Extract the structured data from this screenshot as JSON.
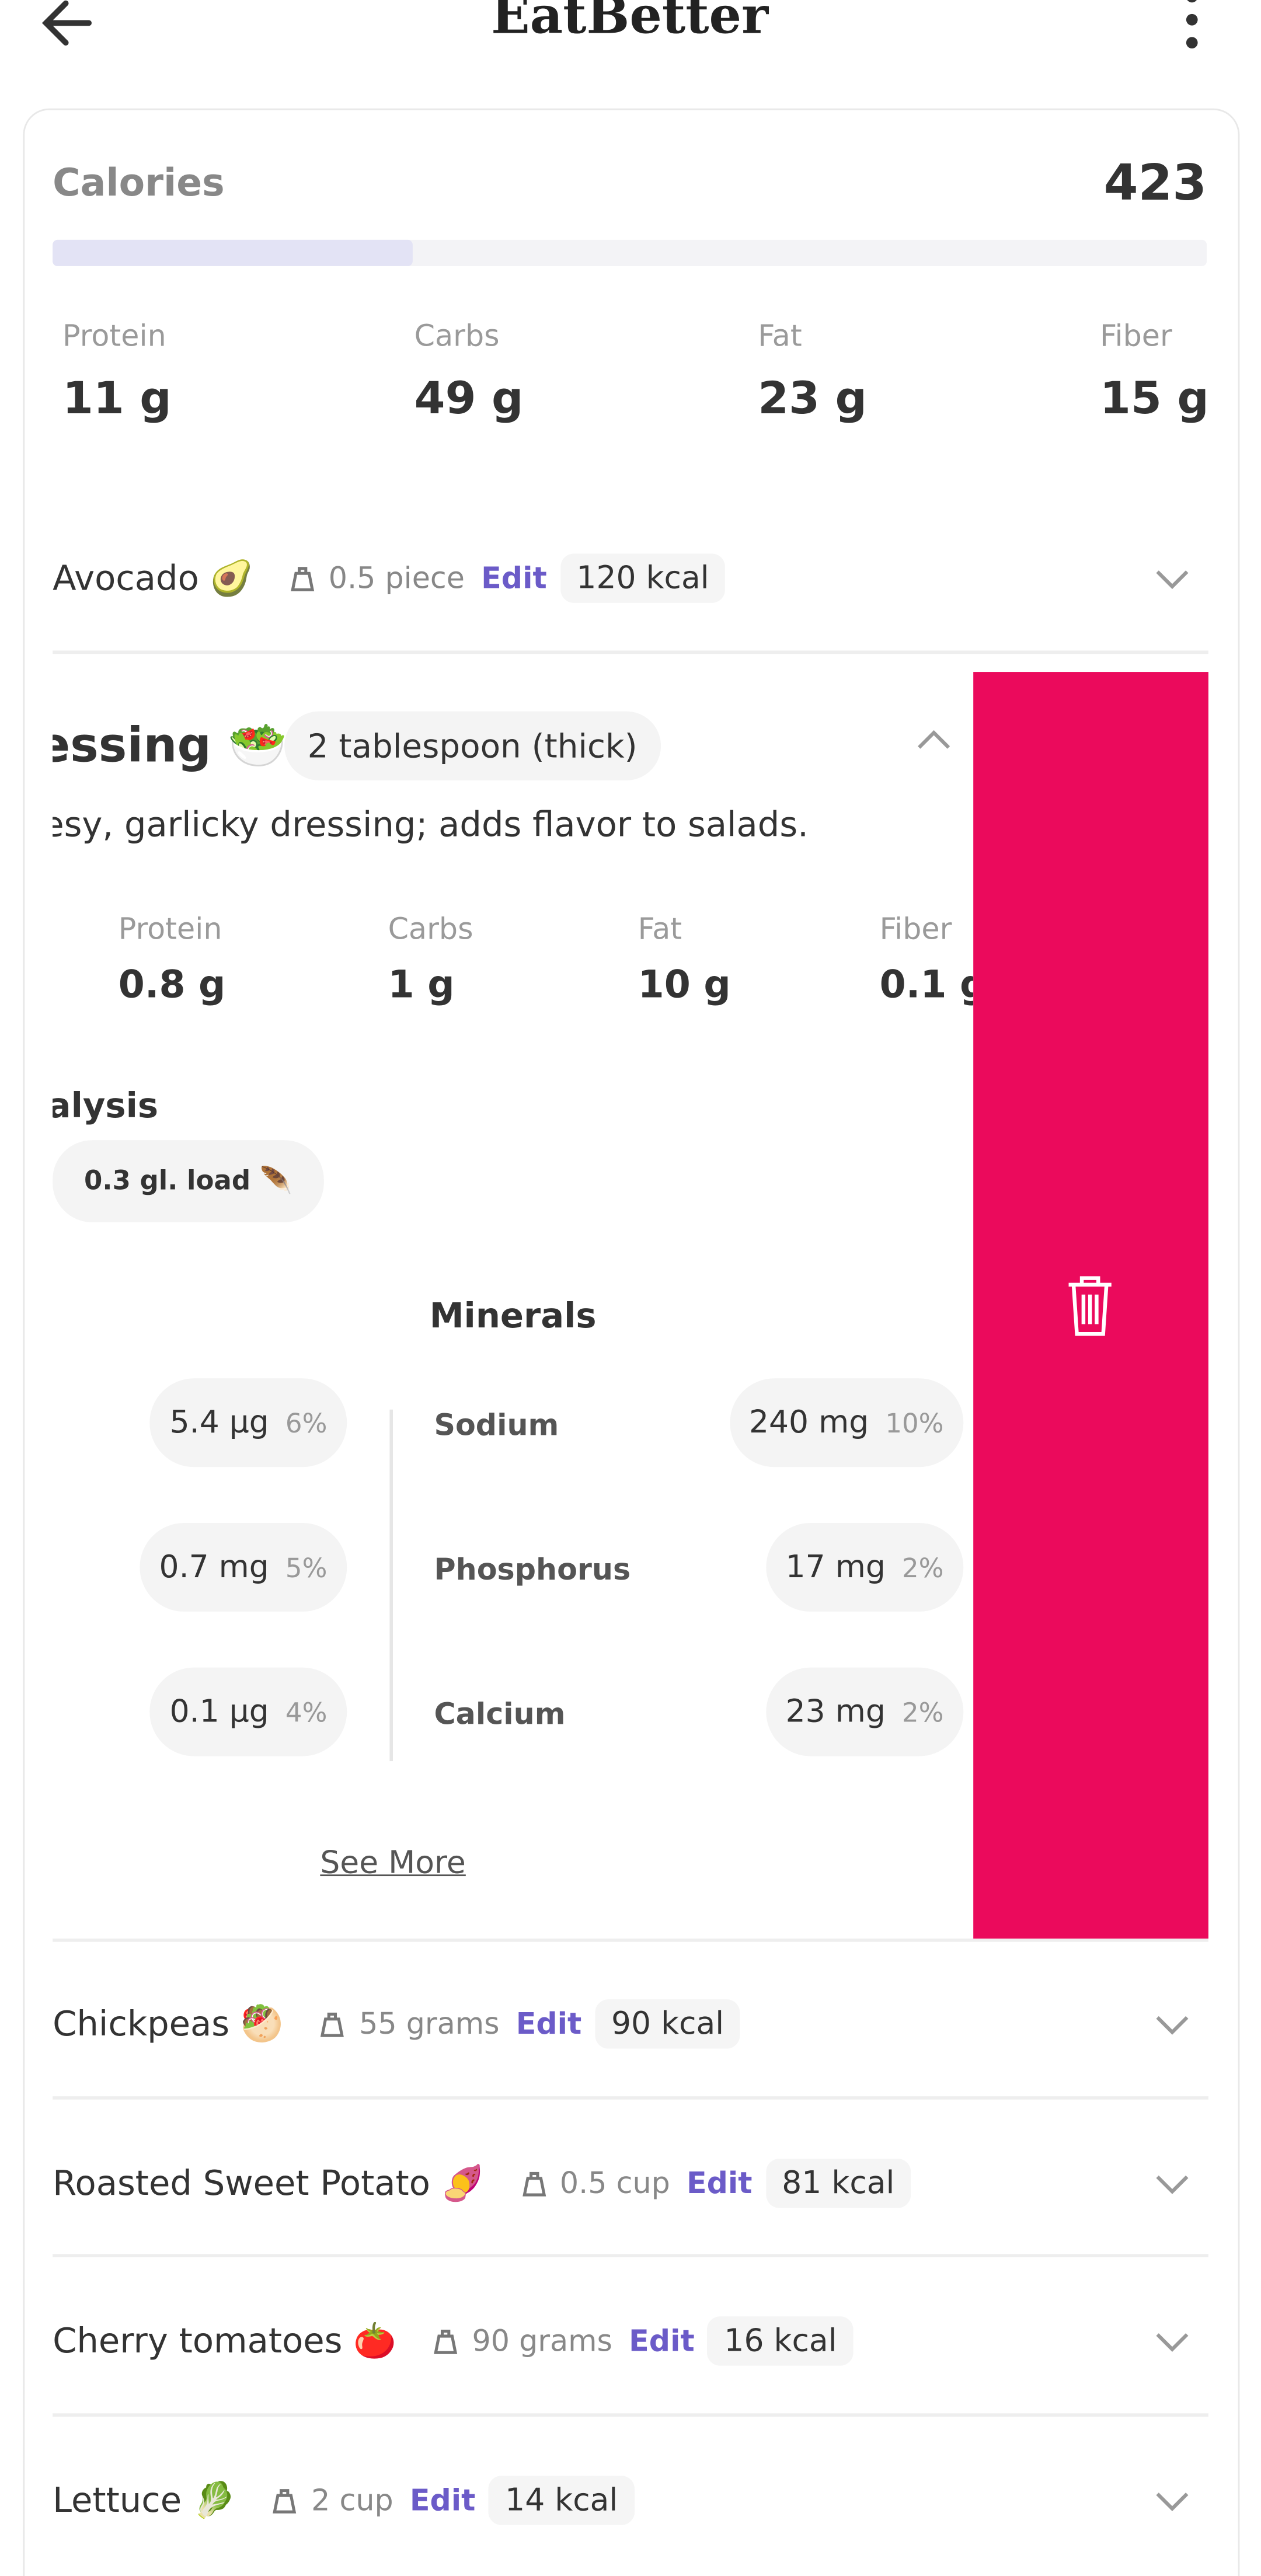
{
  "header": {
    "title": "EatBetter"
  },
  "summary": {
    "calories_label": "Calories",
    "calories": "423",
    "macros": [
      {
        "label": "Protein",
        "value": "11 g"
      },
      {
        "label": "Carbs",
        "value": "49 g"
      },
      {
        "label": "Fat",
        "value": "23 g"
      },
      {
        "label": "Fiber",
        "value": "15 g"
      }
    ]
  },
  "items": [
    {
      "name": "Avocado 🥑",
      "amount": "0.5 piece",
      "edit": "Edit",
      "kcal": "120 kcal"
    },
    {
      "name": "Chickpeas 🥙",
      "amount": "55 grams",
      "edit": "Edit",
      "kcal": "90 kcal"
    },
    {
      "name": "Roasted Sweet Potato 🍠",
      "amount": "0.5 cup",
      "edit": "Edit",
      "kcal": "81 kcal"
    },
    {
      "name": "Cherry tomatoes 🍅",
      "amount": "90 grams",
      "edit": "Edit",
      "kcal": "16 kcal"
    },
    {
      "name": "Lettuce 🥬",
      "amount": "2 cup",
      "edit": "Edit",
      "kcal": "14 kcal"
    }
  ],
  "expanded": {
    "name": "essing 🥗",
    "amount": "2 tablespoon (thick)",
    "description": "esy, garlicky dressing; adds flavor to salads.",
    "macros": [
      {
        "label": "Protein",
        "value": "0.8 g"
      },
      {
        "label": "Carbs",
        "value": "1 g"
      },
      {
        "label": "Fat",
        "value": "10 g"
      },
      {
        "label": "Fiber",
        "value": "0.1 g"
      }
    ],
    "analysis_title": "alysis",
    "gl_load": "0.3 gl. load 🪶",
    "minerals_title": "Minerals",
    "left": [
      {
        "value": "5.4 µg",
        "percent": "6%"
      },
      {
        "value": "0.7 mg",
        "percent": "5%"
      },
      {
        "value": "0.1 µg",
        "percent": "4%"
      }
    ],
    "right": [
      {
        "name": "Sodium",
        "value": "240 mg",
        "percent": "10%"
      },
      {
        "name": "Phosphorus",
        "value": "17 mg",
        "percent": "2%"
      },
      {
        "name": "Calcium",
        "value": "23 mg",
        "percent": "2%"
      }
    ],
    "see_more": "See More"
  }
}
